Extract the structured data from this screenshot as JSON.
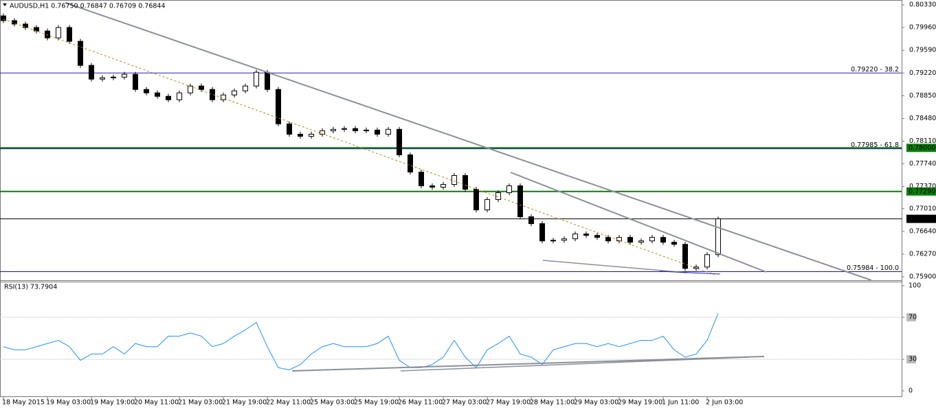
{
  "chart_data": [
    {
      "type": "candlestick",
      "title": "AUDUSD,H1  0.76750 0.76847 0.76709 0.76844",
      "categories": [
        "18 May 2015",
        null,
        null,
        null,
        "19 May 03:00",
        null,
        null,
        null,
        "19 May 19:00",
        null,
        null,
        null,
        "20 May 11:00",
        null,
        null,
        null,
        "21 May 03:00",
        null,
        null,
        null,
        "21 May 19:00",
        null,
        null,
        null,
        "22 May 11:00",
        null,
        null,
        null,
        "25 May 03:00",
        null,
        null,
        null,
        "25 May 19:00",
        null,
        null,
        null,
        "26 May 11:00",
        null,
        null,
        null,
        "27 May 03:00",
        null,
        null,
        null,
        "27 May 19:00",
        null,
        null,
        null,
        "28 May 11:00",
        null,
        null,
        null,
        "29 May 03:00",
        null,
        null,
        null,
        "29 May 19:00",
        null,
        null,
        null,
        "1 Jun 11:00",
        null,
        null,
        null,
        "2 Jun 03:00",
        null
      ],
      "open": [
        0.8015,
        0.80073,
        0.80017,
        0.79961,
        0.79904,
        0.79792,
        0.79961,
        0.79736,
        0.79344,
        0.7912,
        0.79142,
        0.79153,
        0.79198,
        0.78952,
        0.78896,
        0.7884,
        0.78784,
        0.78896,
        0.79008,
        0.78952,
        0.78784,
        0.78862,
        0.78929,
        0.79008,
        0.79232,
        0.78952,
        0.78391,
        0.78223,
        0.78189,
        0.78223,
        0.78279,
        0.78302,
        0.78315,
        0.78279,
        0.7829,
        0.78223,
        0.78302,
        0.77887,
        0.77606,
        0.77382,
        0.7736,
        0.77405,
        0.7755,
        0.77326,
        0.7699,
        0.77158,
        0.7727,
        0.77382,
        0.76878,
        0.76766,
        0.76485,
        0.76495,
        0.76519,
        0.76598,
        0.76575,
        0.76542,
        0.76485,
        0.76542,
        0.76463,
        0.76485,
        0.76542,
        0.76463,
        0.76429,
        0.76037,
        0.7606,
        0.76261
      ],
      "high": [
        0.8019,
        0.80113,
        0.80057,
        0.80001,
        0.79944,
        0.80001,
        0.80001,
        0.79776,
        0.79384,
        0.79182,
        0.79193,
        0.79238,
        0.79238,
        0.78992,
        0.78936,
        0.7888,
        0.78936,
        0.79048,
        0.79048,
        0.78992,
        0.78902,
        0.78969,
        0.79048,
        0.79272,
        0.79272,
        0.78992,
        0.78431,
        0.78263,
        0.78263,
        0.78319,
        0.78342,
        0.78355,
        0.78355,
        0.7833,
        0.7833,
        0.78342,
        0.78342,
        0.77927,
        0.77646,
        0.77422,
        0.77445,
        0.7759,
        0.7759,
        0.77366,
        0.77198,
        0.7731,
        0.77422,
        0.77422,
        0.76918,
        0.76806,
        0.76535,
        0.76559,
        0.76638,
        0.76638,
        0.76615,
        0.76582,
        0.76582,
        0.76582,
        0.76525,
        0.76582,
        0.76582,
        0.76503,
        0.76469,
        0.761,
        0.76301,
        0.7688
      ],
      "low": [
        0.80033,
        0.79977,
        0.79921,
        0.79864,
        0.79752,
        0.79752,
        0.79696,
        0.79304,
        0.7908,
        0.7908,
        0.79102,
        0.79113,
        0.78912,
        0.78856,
        0.788,
        0.78744,
        0.78744,
        0.78856,
        0.78912,
        0.78744,
        0.78744,
        0.78822,
        0.78889,
        0.78968,
        0.78912,
        0.78351,
        0.78183,
        0.78149,
        0.78149,
        0.78183,
        0.78239,
        0.78262,
        0.78239,
        0.78239,
        0.78183,
        0.78183,
        0.77847,
        0.77566,
        0.77342,
        0.7732,
        0.7732,
        0.77365,
        0.77286,
        0.7695,
        0.7695,
        0.77118,
        0.7723,
        0.76838,
        0.76726,
        0.76445,
        0.76445,
        0.76455,
        0.76479,
        0.76535,
        0.76502,
        0.76445,
        0.76445,
        0.76423,
        0.76423,
        0.76445,
        0.76423,
        0.76389,
        0.75997,
        0.75997,
        0.7602,
        0.76221
      ],
      "close": [
        0.80073,
        0.80017,
        0.79961,
        0.79904,
        0.79792,
        0.79961,
        0.79736,
        0.79344,
        0.7912,
        0.79142,
        0.79153,
        0.79198,
        0.78952,
        0.78896,
        0.7884,
        0.78784,
        0.78896,
        0.79008,
        0.78952,
        0.78784,
        0.78862,
        0.78929,
        0.79008,
        0.79232,
        0.78952,
        0.78391,
        0.78223,
        0.78189,
        0.78223,
        0.78279,
        0.78302,
        0.78315,
        0.78279,
        0.7829,
        0.78223,
        0.78302,
        0.77887,
        0.77606,
        0.77382,
        0.7736,
        0.77405,
        0.7755,
        0.77326,
        0.7699,
        0.77158,
        0.7727,
        0.77382,
        0.76878,
        0.76766,
        0.76485,
        0.76495,
        0.76519,
        0.76598,
        0.76575,
        0.76542,
        0.76485,
        0.76542,
        0.76463,
        0.76485,
        0.76542,
        0.76463,
        0.76429,
        0.76037,
        0.7606,
        0.76261,
        0.76844
      ],
      "ylim": [
        0.75844,
        0.80409
      ],
      "yticks": [
        {
          "value": 0.8033,
          "label": "0.80330"
        },
        {
          "value": 0.7996,
          "label": "0.79960"
        },
        {
          "value": 0.7959,
          "label": "0.79590"
        },
        {
          "value": 0.7922,
          "label": "0.79220"
        },
        {
          "value": 0.7885,
          "label": "0.78850"
        },
        {
          "value": 0.7848,
          "label": "0.78480"
        },
        {
          "value": 0.7811,
          "label": "0.78110"
        },
        {
          "value": 0.7774,
          "label": "0.77740"
        },
        {
          "value": 0.7737,
          "label": "0.77370"
        },
        {
          "value": 0.7701,
          "label": "0.77010"
        },
        {
          "value": 0.7664,
          "label": "0.76640"
        },
        {
          "value": 0.7627,
          "label": "0.76270"
        },
        {
          "value": 0.759,
          "label": "0.75900"
        }
      ],
      "levels": [
        {
          "value": 0.7922,
          "label": "0.79220 - 38.2",
          "color": "#2020a0"
        },
        {
          "value": 0.77985,
          "label": "0.77985 - 61.8",
          "color": "#1010b0"
        },
        {
          "value": 0.75984,
          "label": "0.75984 - 100.0",
          "color": "#1010b0"
        }
      ],
      "price_tags": [
        {
          "value": 0.78,
          "label": "0.78000",
          "color": "#0a7d0a"
        },
        {
          "value": 0.7729,
          "label": "0.77290",
          "color": "#0a7d0a"
        },
        {
          "value": 0.76844,
          "label": "0.76844",
          "color": "#000000"
        }
      ],
      "bull_color": "#ffffff",
      "bear_color": "#000000"
    },
    {
      "type": "line",
      "title": "RSI(13) 73.7904",
      "values": [
        42,
        39,
        39,
        42,
        45,
        48,
        42,
        29,
        35,
        35,
        42,
        35,
        45,
        42,
        42,
        52,
        52,
        55,
        52,
        42,
        45,
        52,
        58,
        65,
        42,
        22,
        20,
        25,
        35,
        42,
        45,
        42,
        42,
        42,
        45,
        52,
        29,
        22,
        22,
        25,
        32,
        48,
        32,
        22,
        39,
        45,
        52,
        35,
        32,
        25,
        39,
        42,
        45,
        45,
        42,
        45,
        42,
        45,
        48,
        48,
        52,
        39,
        32,
        35,
        48,
        73.79
      ],
      "color": "#1e90ff",
      "ylim": [
        -5.9,
        103.9
      ],
      "yticks": [
        100,
        70,
        30,
        0
      ],
      "levels": [
        70,
        30
      ]
    }
  ]
}
